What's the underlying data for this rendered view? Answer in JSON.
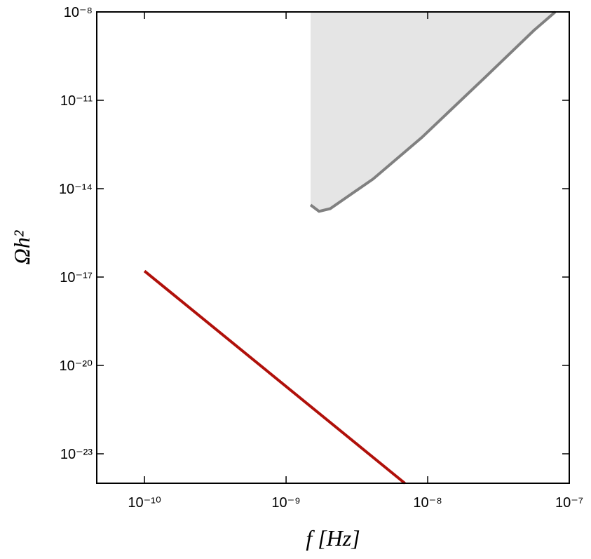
{
  "chart_data": {
    "type": "line",
    "xscale": "log",
    "yscale": "log",
    "xlabel": "f [Hz]",
    "ylabel": "Ωh²",
    "xlim": [
      4.6e-11,
      1e-07
    ],
    "ylim": [
      1e-24,
      1e-08
    ],
    "xticks": [
      {
        "value": 1e-10,
        "label": "10⁻¹⁰"
      },
      {
        "value": 1e-09,
        "label": "10⁻⁹"
      },
      {
        "value": 1e-08,
        "label": "10⁻⁸"
      },
      {
        "value": 1e-07,
        "label": "10⁻⁷"
      }
    ],
    "yticks": [
      {
        "value": 1e-23,
        "label": "10⁻²³"
      },
      {
        "value": 1e-20,
        "label": "10⁻²⁰"
      },
      {
        "value": 1e-17,
        "label": "10⁻¹⁷"
      },
      {
        "value": 1e-14,
        "label": "10⁻¹⁴"
      },
      {
        "value": 1e-11,
        "label": "10⁻¹¹"
      },
      {
        "value": 1e-08,
        "label": "10⁻⁸"
      }
    ],
    "series": [
      {
        "color": "#b0100a",
        "x": [
          1e-10,
          6.9e-09
        ],
        "values": [
          1.6e-17,
          1e-24
        ]
      },
      {
        "color": "#808080",
        "fill": "#e5e5e5",
        "fill_above": true,
        "x": [
          1.49e-09,
          1.71e-09,
          2.05e-09,
          4.1e-09,
          9.1e-09,
          2.55e-08,
          5.65e-08,
          7.96e-08
        ],
        "values": [
          2.8e-15,
          1.7e-15,
          2.1e-15,
          2.1e-14,
          5.5e-13,
          6.1e-11,
          2.4e-09,
          1e-08
        ]
      }
    ]
  }
}
